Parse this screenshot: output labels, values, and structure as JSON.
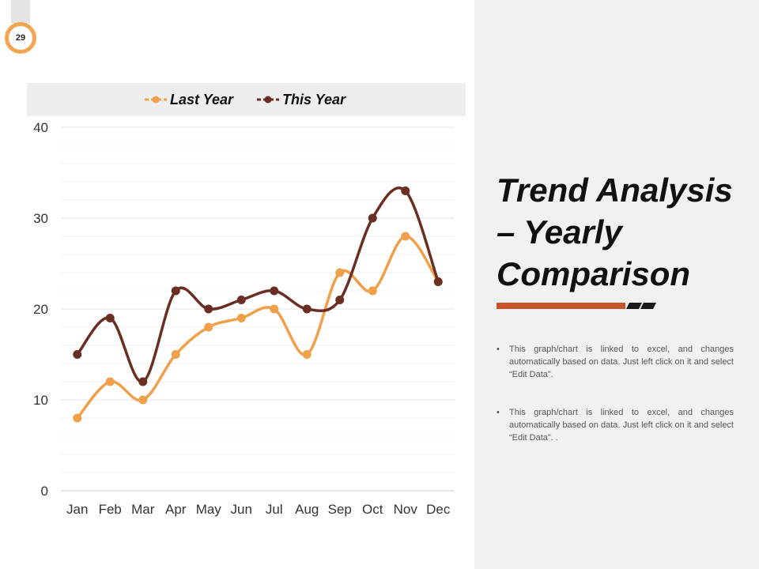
{
  "slide": {
    "page_number": "29",
    "title": "Trend Analysis – Yearly Comparison",
    "bullets": [
      "This graph/chart is linked to excel, and changes automatically based on data. Just left click on it and select “Edit Data”.",
      "This graph/chart is linked to excel, and changes automatically based on data. Just left click on it and select “Edit Data”. ."
    ]
  },
  "colors": {
    "last_year": "#f0a04b",
    "this_year": "#6b2e22",
    "accent_bar": "#c8522c",
    "dash_marks": "#1a1a1a"
  },
  "chart_data": {
    "type": "line",
    "categories": [
      "Jan",
      "Feb",
      "Mar",
      "Apr",
      "May",
      "Jun",
      "Jul",
      "Aug",
      "Sep",
      "Oct",
      "Nov",
      "Dec"
    ],
    "series": [
      {
        "name": "Last Year",
        "values": [
          8,
          12,
          10,
          15,
          18,
          19,
          20,
          15,
          24,
          22,
          28,
          23
        ]
      },
      {
        "name": "This Year",
        "values": [
          15,
          19,
          12,
          22,
          20,
          21,
          22,
          20,
          21,
          30,
          33,
          23
        ]
      }
    ],
    "ylim": [
      0,
      40
    ],
    "y_ticks": [
      0,
      10,
      20,
      30,
      40
    ],
    "smooth": true,
    "grid": true,
    "legend_position": "top"
  }
}
